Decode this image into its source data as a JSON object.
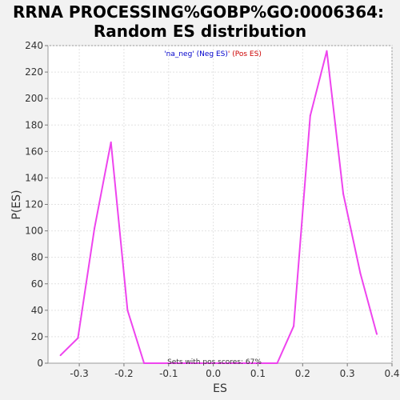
{
  "chart_data": {
    "type": "line",
    "title_line1": "RRNA PROCESSING%GOBP%GO:0006364:",
    "title_line2": "Random ES distribution",
    "xlabel": "ES",
    "ylabel": "P(ES)",
    "xlim": [
      -0.37,
      0.4
    ],
    "ylim": [
      0,
      240
    ],
    "xticks": [
      -0.3,
      -0.2,
      -0.1,
      0.0,
      0.1,
      0.2,
      0.3,
      0.4
    ],
    "xtick_labels": [
      "-0.3",
      "-0.2",
      "-0.1",
      "0.0",
      "0.1",
      "0.2",
      "0.3",
      "0.4"
    ],
    "yticks": [
      0,
      20,
      40,
      60,
      80,
      100,
      120,
      140,
      160,
      180,
      200,
      220,
      240
    ],
    "ytick_labels": [
      "0",
      "20",
      "40",
      "60",
      "80",
      "100",
      "120",
      "140",
      "160",
      "180",
      "200",
      "220",
      "240"
    ],
    "grid": true,
    "legend": {
      "placement": "top-center",
      "neg_text": "'na_neg' (Neg ES)",
      "separator": "'",
      "pos_text": " (Pos ES)",
      "neg_color": "#0000cc",
      "pos_color": "#cc0000"
    },
    "annotation": "Sets with pos scores: 67%",
    "line_color": "#ee44ee",
    "series": [
      {
        "x": [
          -0.342,
          -0.303,
          -0.266,
          -0.229,
          -0.192,
          -0.155,
          -0.118,
          -0.08,
          -0.043,
          -0.006,
          0.031,
          0.068,
          0.105,
          0.143,
          0.18,
          0.217,
          0.254,
          0.291,
          0.329,
          0.366
        ],
        "y": [
          6,
          19,
          102,
          167,
          40,
          0,
          0,
          0,
          0,
          0,
          0,
          0,
          0,
          0,
          28,
          187,
          236,
          128,
          68,
          22
        ]
      }
    ]
  }
}
